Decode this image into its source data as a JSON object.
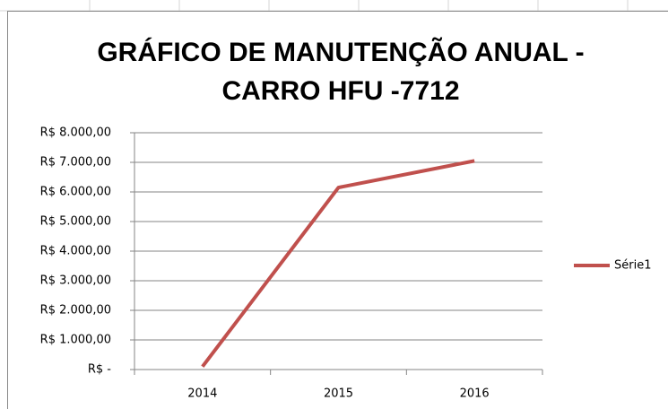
{
  "chart_data": {
    "type": "line",
    "title": [
      "GRÁFICO DE MANUTENÇÃO ANUAL -",
      "CARRO HFU -7712"
    ],
    "categories": [
      "2014",
      "2015",
      "2016"
    ],
    "series": [
      {
        "name": "Série1",
        "color": "#c0504d",
        "values": [
          100,
          6150,
          7050
        ]
      }
    ],
    "ylim": [
      0,
      8000
    ],
    "yticks": [
      {
        "value": 0,
        "label": "R$ -"
      },
      {
        "value": 1000,
        "label": "R$ 1.000,00"
      },
      {
        "value": 2000,
        "label": "R$ 2.000,00"
      },
      {
        "value": 3000,
        "label": "R$ 3.000,00"
      },
      {
        "value": 4000,
        "label": "R$ 4.000,00"
      },
      {
        "value": 5000,
        "label": "R$ 5.000,00"
      },
      {
        "value": 6000,
        "label": "R$ 6.000,00"
      },
      {
        "value": 7000,
        "label": "R$ 7.000,00"
      },
      {
        "value": 8000,
        "label": "R$ 8.000,00"
      }
    ],
    "grid": true,
    "legend": "right"
  }
}
